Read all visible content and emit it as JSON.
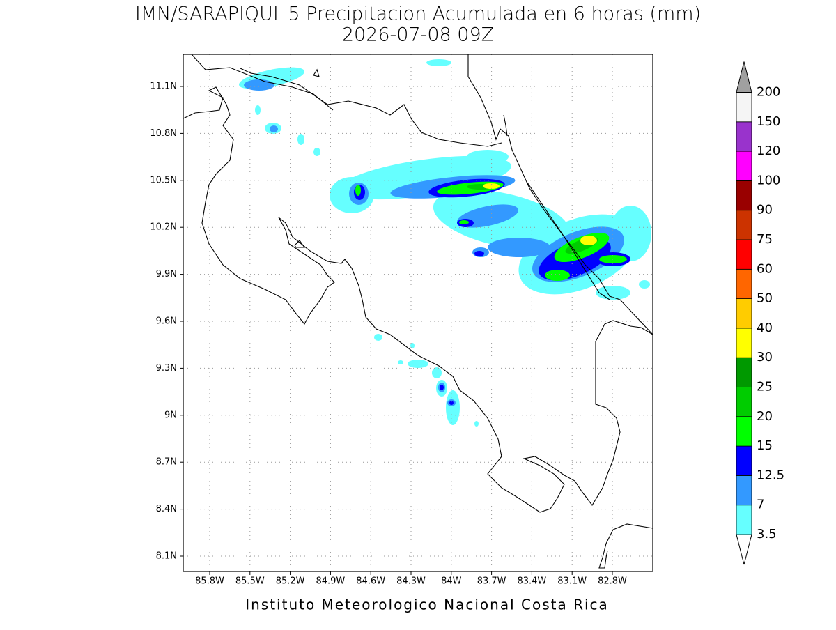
{
  "title": "IMN/SARAPIQUI_5 Precipitacion Acumulada en 6 horas (mm)",
  "subtitle": "2026-07-08 09Z",
  "map": {
    "lat_ticks": [
      "11.1N",
      "10.8N",
      "10.5N",
      "10.2N",
      "9.9N",
      "9.6N",
      "9.3N",
      "9N",
      "8.7N",
      "8.4N",
      "8.1N"
    ],
    "lon_ticks": [
      "85.8W",
      "85.5W",
      "85.2W",
      "84.9W",
      "84.6W",
      "84.3W",
      "84W",
      "83.7W",
      "83.4W",
      "83.1W",
      "82.8W"
    ]
  },
  "legend": {
    "levels": [
      3.5,
      7,
      12.5,
      15,
      20,
      25,
      30,
      40,
      50,
      60,
      75,
      90,
      100,
      120,
      150,
      200
    ],
    "colors": [
      "#ffffff",
      "#66ffff",
      "#3399ff",
      "#0000ff",
      "#00ff00",
      "#00cc00",
      "#009900",
      "#ffff00",
      "#ffcc00",
      "#ff6600",
      "#ff0000",
      "#cc3300",
      "#990000",
      "#ff00ff",
      "#9933cc",
      "#f5f5f5",
      "#a0a0a0"
    ]
  },
  "footer": "Instituto Meteorologico Nacional Costa Rica"
}
